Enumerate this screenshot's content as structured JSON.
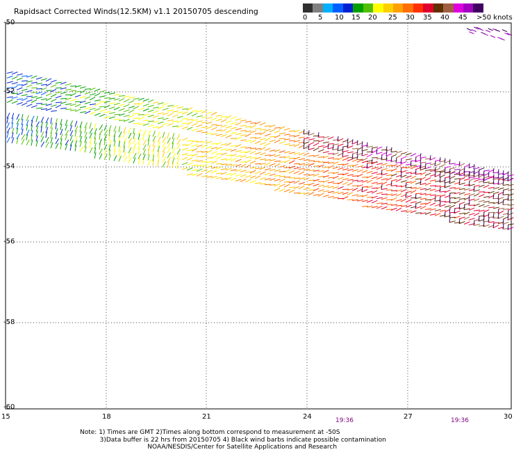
{
  "title": "Rapidsact Corrected Winds(12.5KM) v1.1 20150705 descending",
  "legend": {
    "colors": [
      "#303030",
      "#808080",
      "#00b0ff",
      "#0060ff",
      "#0020d0",
      "#00a000",
      "#50c000",
      "#ffff00",
      "#ffd000",
      "#ffa000",
      "#ff7000",
      "#ff3000",
      "#e00030",
      "#603000",
      "#a06040",
      "#e000e0",
      "#a000c0",
      "#400060"
    ],
    "labels": [
      "0",
      "5",
      "10",
      "15",
      "20",
      "25",
      "30",
      "35",
      "40",
      "45",
      ">50 knots"
    ]
  },
  "map": {
    "lat_labels": [
      "-50",
      "-52",
      "-54",
      "-56",
      "-58",
      "-60"
    ],
    "lon_labels": [
      "15",
      "18",
      "21",
      "24",
      "27",
      "30"
    ],
    "time_labels": [
      "19:36",
      "19:36"
    ]
  },
  "notes": {
    "line1": "Note: 1) Times are GMT 2)Times along bottom correspond to measurement at -50S",
    "line2": "3)Data buffer is 22 hrs from 20150705 4) Black wind barbs indicate possible contamination",
    "line3": "NOAA/NESDIS/Center for Satellite Applications and Research"
  }
}
